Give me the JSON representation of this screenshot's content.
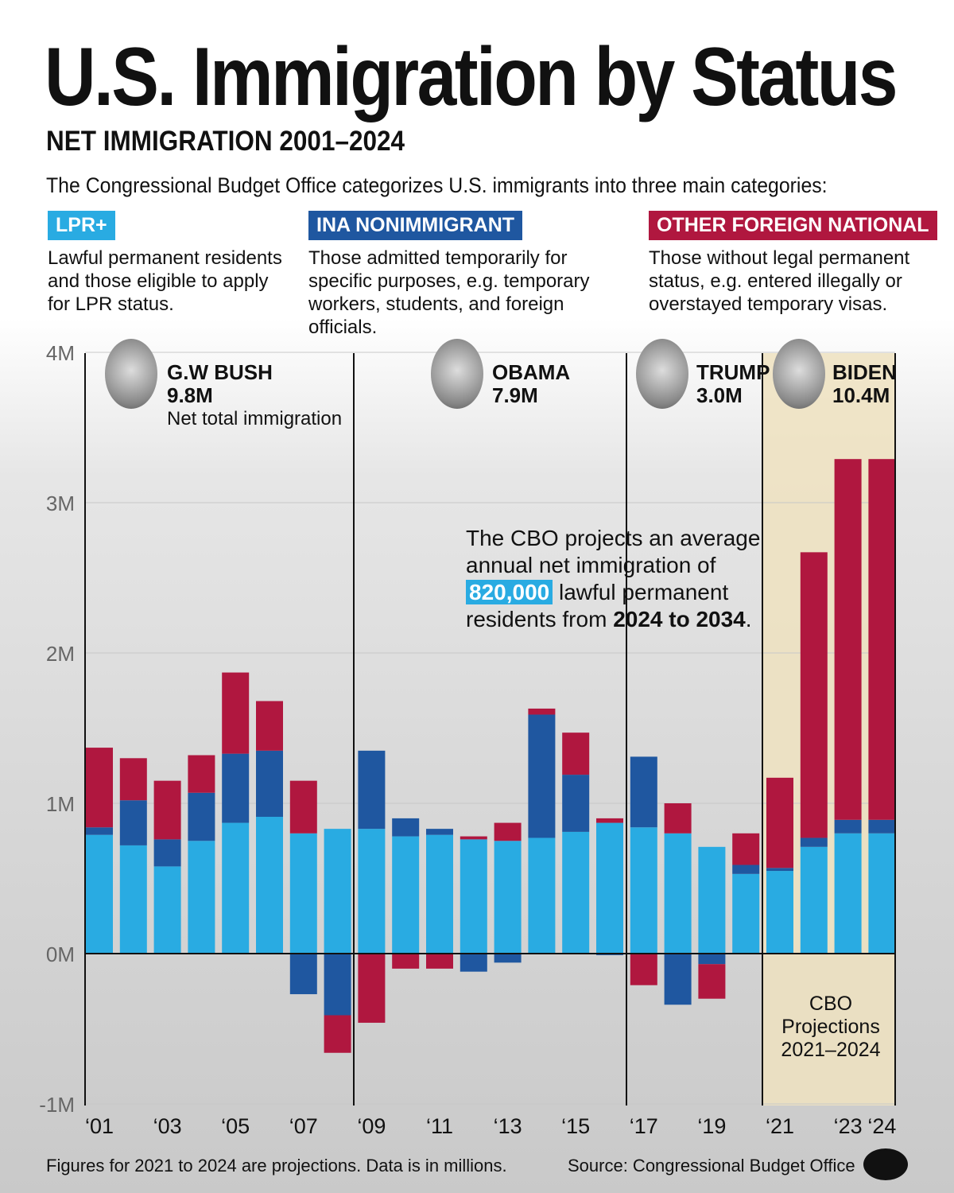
{
  "header": {
    "title": "U.S. Immigration by Status",
    "subtitle": "NET IMMIGRATION 2001–2024",
    "intro": "The Congressional Budget Office categorizes U.S. immigrants into three main categories:"
  },
  "categories": [
    {
      "label": "LPR+",
      "color": "#29abe2",
      "description": "Lawful permanent residents and those eligible to apply for LPR status."
    },
    {
      "label": "INA NONIMMIGRANT",
      "color": "#1f57a0",
      "description": "Those admitted temporarily for specific purposes, e.g. temporary workers, students, and foreign officials."
    },
    {
      "label": "OTHER FOREIGN NATIONAL",
      "color": "#b0173f",
      "description": "Those without legal permanent status, e.g. entered illegally or overstayed temporary visas."
    }
  ],
  "presidents": [
    {
      "name": "G.W BUSH",
      "total": "9.8M",
      "caption": "Net total immigration"
    },
    {
      "name": "OBAMA",
      "total": "7.9M"
    },
    {
      "name": "TRUMP",
      "total": "3.0M"
    },
    {
      "name": "BIDEN",
      "total": "10.4M"
    }
  ],
  "annotation": {
    "pre": "The CBO projects an average annual net immigration of",
    "highlight": "820,000",
    "mid": "lawful permanent residents from",
    "bold": "2024 to 2034",
    "end": "."
  },
  "projection_label": "CBO Projections 2021–2024",
  "footer": {
    "note": "Figures for 2021 to 2024 are projections. Data is in millions.",
    "source": "Source: Congressional Budget Office"
  },
  "chart_data": {
    "type": "bar",
    "stacked": true,
    "title": "U.S. Immigration by Status",
    "subtitle": "NET IMMIGRATION 2001–2024",
    "categories": [
      "2001",
      "2002",
      "2003",
      "2004",
      "2005",
      "2006",
      "2007",
      "2008",
      "2009",
      "2010",
      "2011",
      "2012",
      "2013",
      "2014",
      "2015",
      "2016",
      "2017",
      "2018",
      "2019",
      "2020",
      "2021",
      "2022",
      "2023",
      "2024"
    ],
    "xtick_labels": [
      "‘01",
      "",
      "‘03",
      "",
      "‘05",
      "",
      "‘07",
      "",
      "‘09",
      "",
      "‘11",
      "",
      "‘13",
      "",
      "‘15",
      "",
      "‘17",
      "",
      "‘19",
      "",
      "‘21",
      "",
      "‘23",
      "‘24"
    ],
    "ytick_labels": [
      "-1M",
      "0M",
      "1M",
      "2M",
      "3M",
      "4M"
    ],
    "ylim": [
      -1,
      4
    ],
    "grid": true,
    "unit": "millions",
    "series": [
      {
        "name": "LPR+",
        "color": "#29abe2",
        "values": [
          0.79,
          0.72,
          0.58,
          0.75,
          0.87,
          0.91,
          0.8,
          0.83,
          0.83,
          0.78,
          0.79,
          0.76,
          0.75,
          0.77,
          0.81,
          0.87,
          0.84,
          0.8,
          0.71,
          0.53,
          0.55,
          0.71,
          0.8,
          0.8
        ]
      },
      {
        "name": "INA NONIMMIGRANT",
        "color": "#1f57a0",
        "values": [
          0.05,
          0.3,
          0.18,
          0.32,
          0.46,
          0.44,
          -0.27,
          -0.41,
          0.52,
          0.12,
          0.04,
          -0.12,
          -0.06,
          0.82,
          0.38,
          -0.01,
          0.47,
          -0.34,
          -0.07,
          0.06,
          0.02,
          0.06,
          0.09,
          0.09
        ]
      },
      {
        "name": "OTHER FOREIGN NATIONAL",
        "color": "#b0173f",
        "values": [
          0.53,
          0.28,
          0.39,
          0.25,
          0.54,
          0.33,
          0.35,
          -0.25,
          -0.46,
          -0.1,
          -0.1,
          0.02,
          0.12,
          0.04,
          0.28,
          0.03,
          -0.21,
          0.2,
          -0.23,
          0.21,
          0.6,
          1.9,
          2.4,
          2.4
        ]
      }
    ],
    "projection_years": [
      "2021",
      "2022",
      "2023",
      "2024"
    ]
  }
}
